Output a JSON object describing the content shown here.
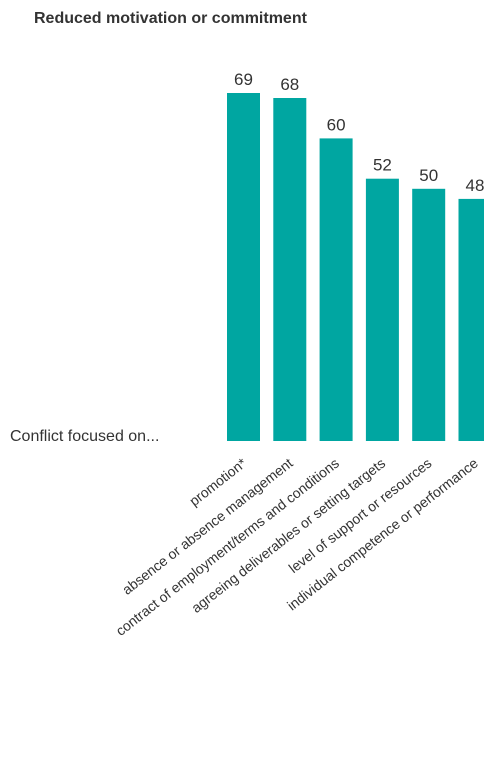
{
  "chart_data": {
    "type": "bar",
    "title": "Reduced motivation or commitment",
    "row_label": "Conflict focused on...",
    "categories": [
      "promotion*",
      "absence or absence management",
      "contract of employment/terms and conditions",
      "agreeing deliverables or setting targets",
      "level of support or resources",
      "individual competence or performance"
    ],
    "values": [
      69,
      68,
      60,
      52,
      50,
      48
    ],
    "ylim": [
      0,
      69
    ],
    "grid": false,
    "legend": "none",
    "colors": {
      "bar": "#00A6A1",
      "text": "#333333"
    }
  }
}
